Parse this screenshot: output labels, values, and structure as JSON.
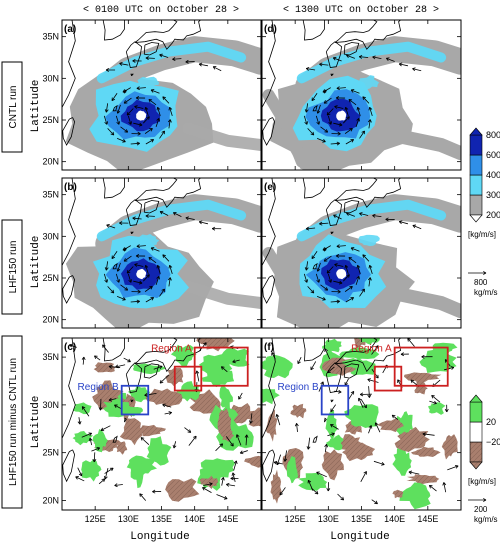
{
  "titles": {
    "left": "< 0100 UTC on October 28 >",
    "right": "< 1300 UTC on October 28 >"
  },
  "rows": [
    {
      "label": "CNTL run"
    },
    {
      "label": "LHF150 run"
    },
    {
      "label": "LHF150 run minus CNTL run"
    }
  ],
  "panels": [
    {
      "id": "(a)",
      "row": 0,
      "col": 0,
      "time": "0100 UTC",
      "field": "cntl"
    },
    {
      "id": "(d)",
      "row": 0,
      "col": 1,
      "time": "1300 UTC",
      "field": "cntl"
    },
    {
      "id": "(b)",
      "row": 1,
      "col": 0,
      "time": "0100 UTC",
      "field": "lhf"
    },
    {
      "id": "(e)",
      "row": 1,
      "col": 1,
      "time": "1300 UTC",
      "field": "lhf"
    },
    {
      "id": "(c)",
      "row": 2,
      "col": 0,
      "time": "0100 UTC",
      "field": "diff"
    },
    {
      "id": "(f)",
      "row": 2,
      "col": 1,
      "time": "1300 UTC",
      "field": "diff"
    }
  ],
  "axes": {
    "xlabel": "Longitude",
    "ylabel": "Latitude",
    "xlim": [
      120,
      150
    ],
    "ylim": [
      19,
      37
    ],
    "xticks": [
      125,
      130,
      135,
      140,
      145
    ],
    "xticklabels": [
      "125E",
      "130E",
      "135E",
      "140E",
      "145E"
    ],
    "yticks": [
      20,
      25,
      30,
      35
    ],
    "yticklabels": [
      "20N",
      "25N",
      "30N",
      "35N"
    ]
  },
  "colorbar_main": {
    "levels": [
      200,
      300,
      400,
      600,
      800
    ],
    "labels": [
      "200",
      "300",
      "400",
      "600",
      "800"
    ],
    "colors": [
      "#a8a8a8",
      "#5fd8f5",
      "#2f8fe8",
      "#1024b0"
    ],
    "unit": "[kg/m/s]"
  },
  "colorbar_diff": {
    "levels": [
      -20,
      20
    ],
    "labels": [
      "−20",
      "20"
    ],
    "colors": [
      "#a97f6e",
      "#ffffff",
      "#5ee05e"
    ],
    "unit": "[kg/m/s]"
  },
  "vector_refs": [
    {
      "value": "800",
      "unit": "kg/m/s"
    },
    {
      "value": "200",
      "unit": "kg/m/s"
    }
  ],
  "regions": [
    {
      "label": "Region A",
      "color": "#cc2020",
      "lon": [
        140,
        148
      ],
      "lat": [
        32,
        36
      ]
    },
    {
      "label": "Region B",
      "color": "#2a44c8",
      "lon": [
        129,
        133
      ],
      "lat": [
        29,
        32
      ]
    }
  ],
  "regions_small": [
    {
      "lon": [
        137,
        141
      ],
      "lat": [
        31.5,
        34
      ]
    }
  ],
  "typhoon_center": {
    "lon": 131.5,
    "lat": 25.5
  }
}
